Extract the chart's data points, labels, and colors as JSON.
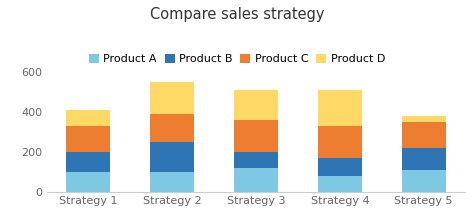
{
  "title": "Compare sales strategy",
  "categories": [
    "Strategy 1",
    "Strategy 2",
    "Strategy 3",
    "Strategy 4",
    "Strategy 5"
  ],
  "products": [
    "Product A",
    "Product B",
    "Product C",
    "Product D"
  ],
  "values": {
    "Product A": [
      100,
      100,
      120,
      80,
      110
    ],
    "Product B": [
      100,
      150,
      80,
      90,
      110
    ],
    "Product C": [
      130,
      140,
      160,
      160,
      130
    ],
    "Product D": [
      80,
      160,
      150,
      180,
      30
    ]
  },
  "colors": {
    "Product A": "#7EC8E3",
    "Product B": "#2E75B6",
    "Product C": "#ED7D31",
    "Product D": "#FFD966"
  },
  "ylim": [
    0,
    640
  ],
  "yticks": [
    0,
    200,
    400,
    600
  ],
  "bar_width": 0.52,
  "background_color": "#ffffff",
  "title_fontsize": 10.5,
  "legend_fontsize": 8,
  "tick_fontsize": 8
}
